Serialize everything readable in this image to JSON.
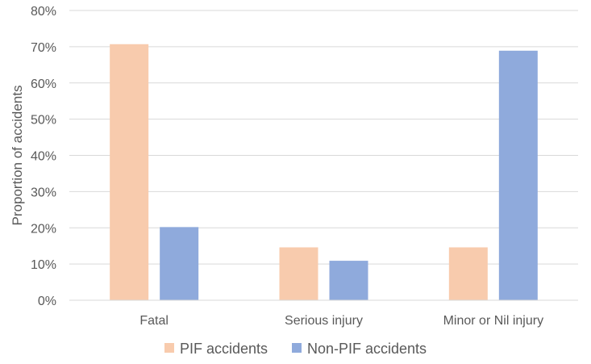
{
  "chart_data": {
    "type": "bar",
    "title": "",
    "xlabel": "",
    "ylabel": "Proportion of accidents",
    "ylim": [
      0,
      80
    ],
    "y_tick_step": 10,
    "y_tick_suffix": "%",
    "grid": true,
    "legend_position": "bottom",
    "categories": [
      "Fatal",
      "Serious injury",
      "Minor or Nil injury"
    ],
    "series": [
      {
        "name": "PIF accidents",
        "color": "#F8CBAD",
        "values": [
          70.7,
          14.6,
          14.6
        ]
      },
      {
        "name": "Non-PIF accidents",
        "color": "#8FAADC",
        "values": [
          20.2,
          10.9,
          68.9
        ]
      }
    ]
  }
}
